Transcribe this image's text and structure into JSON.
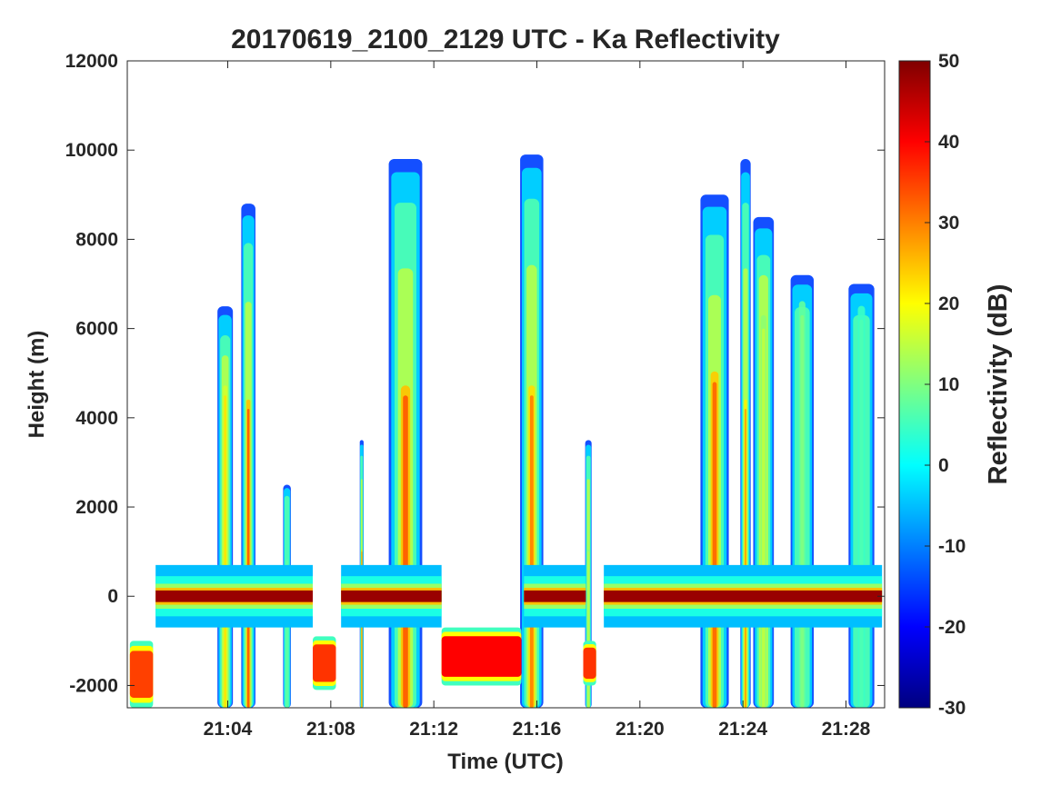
{
  "chart_data": {
    "type": "heatmap",
    "title": "20170619_2100_2129 UTC - Ka Reflectivity",
    "xlabel": "Time (UTC)",
    "ylabel": "Height (m)",
    "colorbar_label": "Reflectivity (dB)",
    "colormap": "jet",
    "x_range_minutes": [
      0.1,
      29.5
    ],
    "x_ticks": [
      {
        "value": 4,
        "label": "21:04"
      },
      {
        "value": 8,
        "label": "21:08"
      },
      {
        "value": 12,
        "label": "21:12"
      },
      {
        "value": 16,
        "label": "21:16"
      },
      {
        "value": 20,
        "label": "21:20"
      },
      {
        "value": 24,
        "label": "21:24"
      },
      {
        "value": 28,
        "label": "21:28"
      }
    ],
    "ylim": [
      -2500,
      12000
    ],
    "y_ticks": [
      {
        "value": 12000,
        "label": "12000"
      },
      {
        "value": 10000,
        "label": "10000"
      },
      {
        "value": 8000,
        "label": "8000"
      },
      {
        "value": 6000,
        "label": "6000"
      },
      {
        "value": 4000,
        "label": "4000"
      },
      {
        "value": 2000,
        "label": "2000"
      },
      {
        "value": 0,
        "label": "0"
      },
      {
        "value": -2000,
        "label": "-2000"
      }
    ],
    "clim": [
      -30,
      50
    ],
    "colorbar_ticks": [
      {
        "value": 50,
        "label": "50"
      },
      {
        "value": 40,
        "label": "40"
      },
      {
        "value": 30,
        "label": "30"
      },
      {
        "value": 20,
        "label": "20"
      },
      {
        "value": 10,
        "label": "10"
      },
      {
        "value": 0,
        "label": "0"
      },
      {
        "value": -10,
        "label": "-10"
      },
      {
        "value": -20,
        "label": "-20"
      },
      {
        "value": -30,
        "label": "-30"
      }
    ],
    "grid": false,
    "features": [
      {
        "kind": "surface_band",
        "t0": 1.2,
        "t1": 7.3,
        "h": 0,
        "z": 48
      },
      {
        "kind": "surface_band",
        "t0": 8.4,
        "t1": 12.3,
        "h": 0,
        "z": 48
      },
      {
        "kind": "surface_band",
        "t0": 15.5,
        "t1": 17.9,
        "h": 0,
        "z": 48
      },
      {
        "kind": "surface_band",
        "t0": 18.6,
        "t1": 29.4,
        "h": 0,
        "z": 48
      },
      {
        "kind": "below_ground",
        "t0": 0.2,
        "t1": 1.1,
        "h0": -2500,
        "h1": -1000,
        "z": 35
      },
      {
        "kind": "below_ground",
        "t0": 7.3,
        "t1": 8.2,
        "h0": -2100,
        "h1": -900,
        "z": 36
      },
      {
        "kind": "below_ground",
        "t0": 12.3,
        "t1": 15.4,
        "h0": -2000,
        "h1": -700,
        "z": 40
      },
      {
        "kind": "below_ground",
        "t0": 17.8,
        "t1": 18.3,
        "h0": -2000,
        "h1": -1000,
        "z": 36
      },
      {
        "kind": "precip_column",
        "t": 3.9,
        "w": 0.6,
        "top": 6500,
        "core": 4500,
        "z": 22
      },
      {
        "kind": "precip_column",
        "t": 4.8,
        "w": 0.55,
        "top": 8800,
        "core": 4200,
        "z": 33
      },
      {
        "kind": "precip_column",
        "t": 6.3,
        "w": 0.3,
        "top": 2500,
        "core": 800,
        "z": 8
      },
      {
        "kind": "precip_column",
        "t": 9.2,
        "w": 0.15,
        "top": 3500,
        "core": 1000,
        "z": 30
      },
      {
        "kind": "precip_column",
        "t": 10.9,
        "w": 1.3,
        "top": 9800,
        "core": 4500,
        "z": 33
      },
      {
        "kind": "precip_column",
        "t": 15.8,
        "w": 0.9,
        "top": 9900,
        "core": 4500,
        "z": 30
      },
      {
        "kind": "precip_column",
        "t": 18.0,
        "w": 0.25,
        "top": 3500,
        "core": 1000,
        "z": 15
      },
      {
        "kind": "precip_column",
        "t": 22.9,
        "w": 1.1,
        "top": 9000,
        "core": 4800,
        "z": 32
      },
      {
        "kind": "precip_column",
        "t": 24.1,
        "w": 0.4,
        "top": 9800,
        "core": 4200,
        "z": 28
      },
      {
        "kind": "precip_column",
        "t": 24.8,
        "w": 0.8,
        "top": 8500,
        "core": 6000,
        "z": 15
      },
      {
        "kind": "precip_column",
        "t": 26.3,
        "w": 0.9,
        "top": 7200,
        "core": 6300,
        "z": 10
      },
      {
        "kind": "precip_column",
        "t": 28.6,
        "w": 1.0,
        "top": 7000,
        "core": 6200,
        "z": 6
      }
    ]
  }
}
